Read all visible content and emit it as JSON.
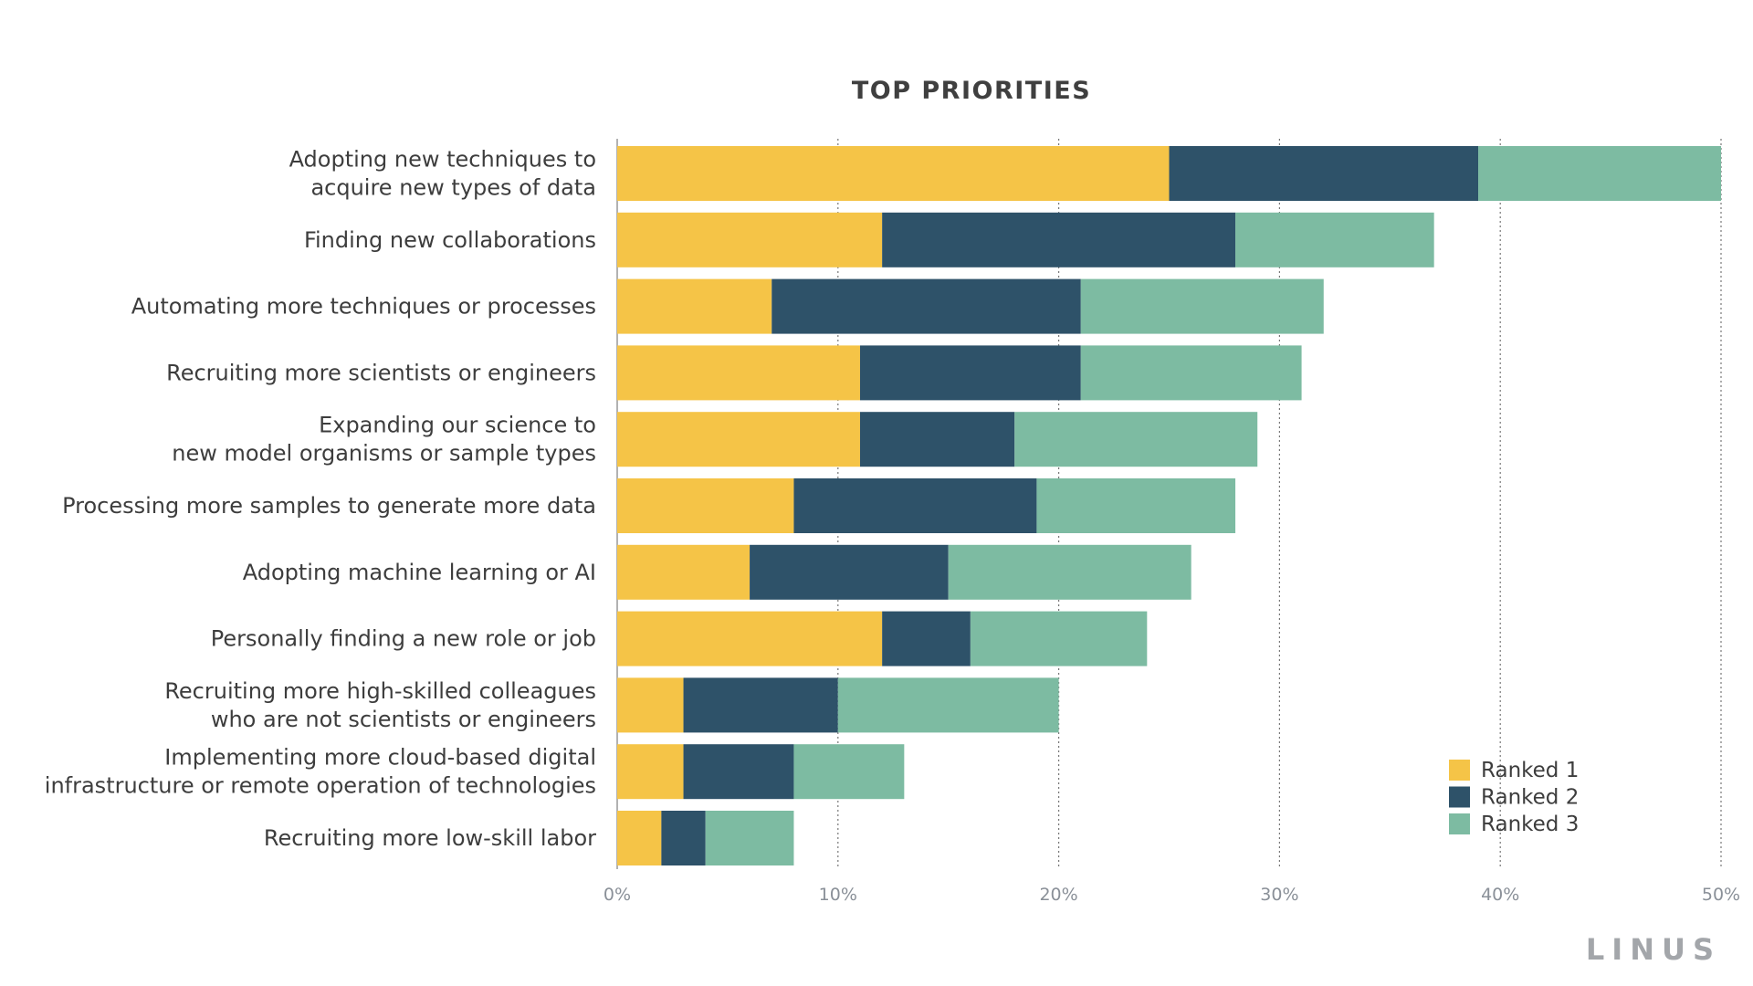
{
  "brand": "LINUS",
  "colors": {
    "ranked_1": "#F5C447",
    "ranked_2": "#2E5269",
    "ranked_3": "#7DBBA2",
    "grid": "#777777",
    "axis": "#999999"
  },
  "chart_data": {
    "type": "bar",
    "orientation": "horizontal",
    "stacked": true,
    "title": "TOP PRIORITIES",
    "xlabel": "",
    "ylabel": "",
    "xlim": [
      0,
      50
    ],
    "x_ticks": [
      0,
      10,
      20,
      30,
      40,
      50
    ],
    "x_tick_labels": [
      "0%",
      "10%",
      "20%",
      "30%",
      "40%",
      "50%"
    ],
    "grid": "vertical dotted",
    "legend_position": "bottom-right",
    "categories": [
      [
        "Adopting new techniques to",
        "acquire new types of data"
      ],
      [
        "Finding new collaborations"
      ],
      [
        "Automating more techniques or processes"
      ],
      [
        "Recruiting more scientists or engineers"
      ],
      [
        "Expanding our science to",
        "new model organisms or sample types"
      ],
      [
        "Processing more samples to generate more data"
      ],
      [
        "Adopting machine learning or AI"
      ],
      [
        "Personally finding a new role or job"
      ],
      [
        "Recruiting more high-skilled colleagues",
        "who are not scientists or engineers"
      ],
      [
        "Implementing more cloud-based digital",
        "infrastructure or remote operation of technologies"
      ],
      [
        "Recruiting more low-skill labor"
      ]
    ],
    "series": [
      {
        "name": "Ranked 1",
        "color": "#F5C447",
        "values": [
          25,
          12,
          7,
          11,
          11,
          8,
          6,
          12,
          3,
          3,
          2
        ]
      },
      {
        "name": "Ranked 2",
        "color": "#2E5269",
        "values": [
          14,
          16,
          14,
          10,
          7,
          11,
          9,
          4,
          7,
          5,
          2
        ]
      },
      {
        "name": "Ranked 3",
        "color": "#7DBBA2",
        "values": [
          11,
          9,
          11,
          10,
          11,
          9,
          11,
          8,
          10,
          5,
          4
        ]
      }
    ]
  }
}
